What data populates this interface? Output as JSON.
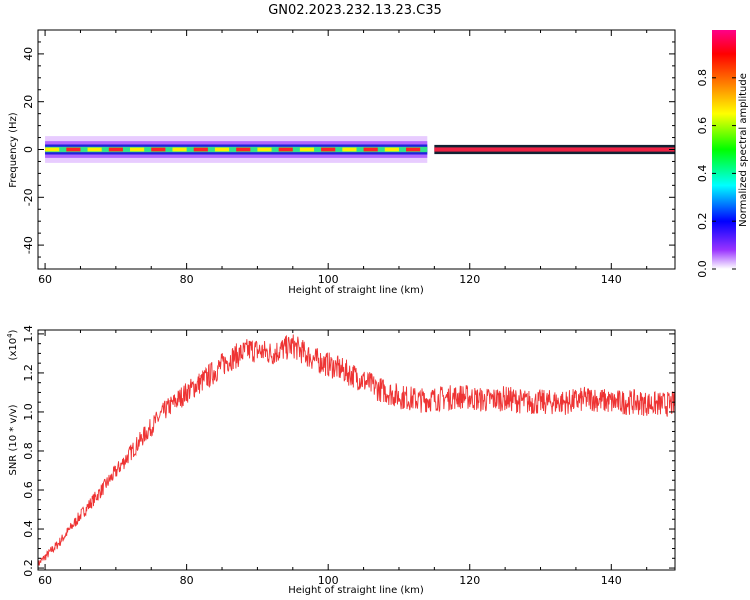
{
  "title": "GN02.2023.232.13.23.C35",
  "chart_data": [
    {
      "type": "heatmap",
      "xlabel": "Height of straight line (km)",
      "ylabel": "Frequency (Hz)",
      "xlim": [
        59,
        149
      ],
      "ylim": [
        -50,
        50
      ],
      "x_ticks": [
        60,
        80,
        100,
        120,
        140
      ],
      "y_ticks": [
        -40,
        -20,
        0,
        20,
        40
      ],
      "colorbar": {
        "label": "Normalized spectral amplitude",
        "range": [
          0.0,
          1.0
        ],
        "ticks": [
          0.0,
          0.2,
          0.4,
          0.6,
          0.8
        ],
        "tick_labels": [
          "0.0",
          "0.2",
          "0.4",
          "0.6",
          "0.8"
        ]
      },
      "band": {
        "center_frequency": 0,
        "wide_segment_x": [
          60,
          114
        ],
        "narrow_segment_x": [
          115,
          149
        ],
        "core_half_width_hz": 0.8,
        "halo_half_width_hz": 3.5
      },
      "grid": false
    },
    {
      "type": "line",
      "xlabel": "Height of straight line (km)",
      "ylabel": "SNR (10 * v/v)",
      "y_multiplier_label": "(x10",
      "y_multiplier_exp": "4",
      "y_multiplier_close": ")",
      "xlim": [
        59,
        149
      ],
      "ylim": [
        0.19,
        1.42
      ],
      "x_ticks": [
        60,
        80,
        100,
        120,
        140
      ],
      "y_ticks": [
        0.2,
        0.4,
        0.6,
        0.8,
        1.0,
        1.2,
        1.4
      ],
      "y_tick_labels": [
        "0.2",
        "0.4",
        "0.6",
        "0.8",
        "1.0",
        "1.2",
        "1.4"
      ],
      "color": "#ee3333",
      "grid": false,
      "series": [
        {
          "x": [
            59,
            62,
            65,
            68,
            71,
            74,
            77,
            80,
            83,
            86,
            89,
            92,
            95,
            98,
            101,
            104,
            107,
            110,
            113,
            116,
            119,
            122,
            125,
            128,
            131,
            134,
            137,
            140,
            143,
            146,
            149
          ],
          "y": [
            0.22,
            0.33,
            0.47,
            0.6,
            0.74,
            0.88,
            1.01,
            1.1,
            1.18,
            1.27,
            1.32,
            1.3,
            1.34,
            1.27,
            1.23,
            1.18,
            1.12,
            1.08,
            1.06,
            1.07,
            1.08,
            1.06,
            1.07,
            1.05,
            1.05,
            1.05,
            1.07,
            1.05,
            1.05,
            1.04,
            1.04
          ]
        }
      ]
    }
  ]
}
